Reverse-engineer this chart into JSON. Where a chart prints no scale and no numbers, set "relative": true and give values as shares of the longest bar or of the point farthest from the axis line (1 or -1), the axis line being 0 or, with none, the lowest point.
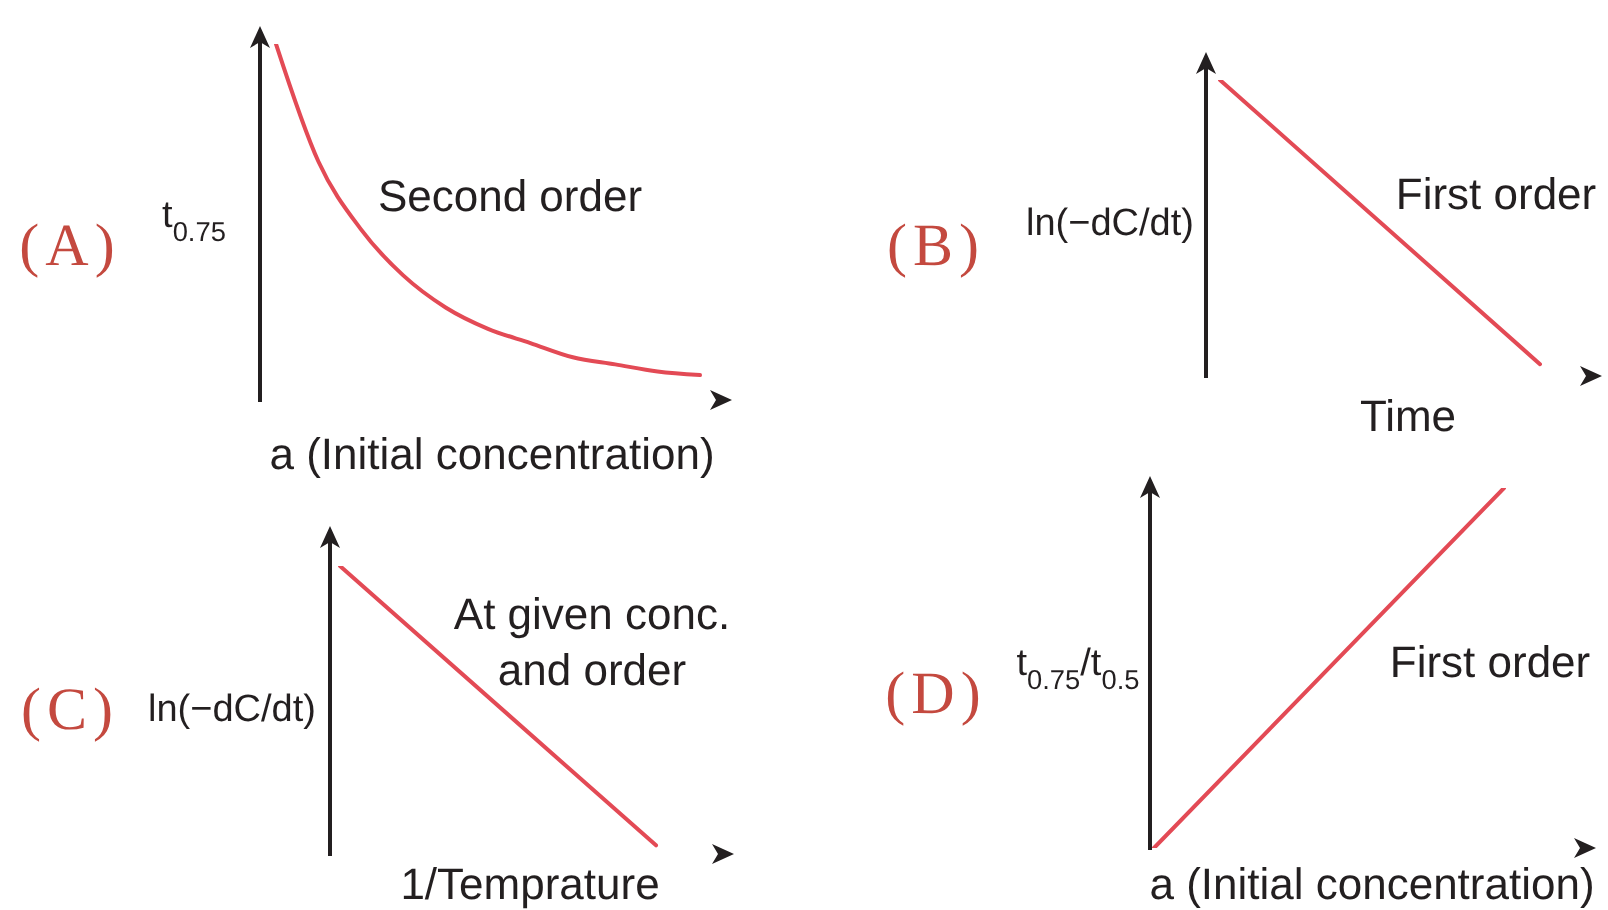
{
  "chart_data": [
    {
      "type": "line",
      "title": "(A)",
      "ylabel": "t$_{0.75}$",
      "xlabel": "a (Initial concentration)",
      "annotations": [
        "Second order"
      ],
      "relative": true,
      "categories": [
        null,
        null,
        null,
        null,
        null,
        null,
        null,
        null,
        null,
        null,
        null
      ],
      "values": [
        1,
        0.67,
        0.48,
        0.35,
        0.26,
        0.2,
        0.16,
        0.12,
        0.1,
        0.08,
        0.07
      ],
      "color": "#e34a55"
    },
    {
      "type": "line",
      "title": "(B)",
      "ylabel": "ln(−dC/dt)",
      "xlabel": "Time",
      "annotations": [
        "First order"
      ],
      "relative": true,
      "categories": [
        null,
        null
      ],
      "values": [
        1,
        0.04
      ],
      "color": "#e34a55"
    },
    {
      "type": "line",
      "title": "(C)",
      "ylabel": "ln(−dC/dt)",
      "xlabel": "1/Temprature",
      "annotations": [
        "At given conc.\nand order"
      ],
      "relative": true,
      "categories": [
        null,
        null
      ],
      "values": [
        1,
        0.03
      ],
      "color": "#e34a55"
    },
    {
      "type": "line",
      "title": "(D)",
      "ylabel": "t$_{0.75}$/t$_{0.5}$",
      "xlabel": "a (Initial concentration)",
      "annotations": [
        "First order"
      ],
      "relative": true,
      "categories": [
        null,
        null
      ],
      "values": [
        0,
        1
      ],
      "color": "#e34a55"
    }
  ]
}
